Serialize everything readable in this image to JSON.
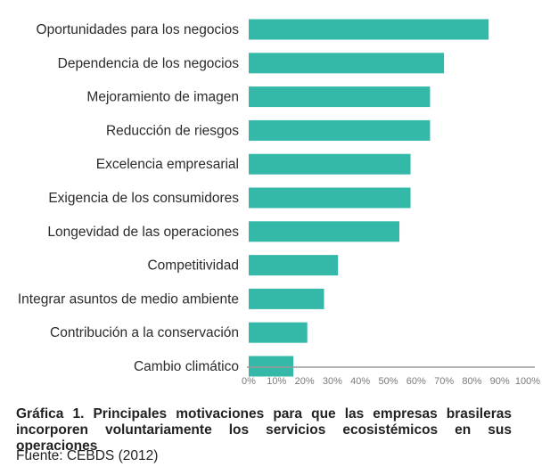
{
  "chart_data": {
    "type": "bar",
    "orientation": "horizontal",
    "categories": [
      "Oportunidades para los negocios",
      "Dependencia de los negocios",
      "Mejoramiento de imagen",
      "Reducción de riesgos",
      "Excelencia empresarial",
      "Exigencia de los consumidores",
      "Longevidad de las operaciones",
      "Competitividad",
      "Integrar asuntos de medio ambiente",
      "Contribución a la conservación",
      "Cambio climático"
    ],
    "values": [
      86,
      70,
      65,
      65,
      58,
      58,
      54,
      32,
      27,
      21,
      16
    ],
    "xlim": [
      0,
      100
    ],
    "xticks": [
      "0%",
      "10%",
      "20%",
      "30%",
      "40%",
      "50%",
      "60%",
      "70%",
      "80%",
      "90%",
      "100%"
    ],
    "bar_color": "#34b8a8",
    "axis_color": "#999999",
    "grid": false,
    "legend": "none"
  },
  "caption": {
    "line1": "Gráfica 1. Principales motivaciones para que las empresas brasileras",
    "line2": "incorporen voluntariamente los servicios ecosistémicos en sus operaciones"
  },
  "source": "Fuente: CEBDS (2012)"
}
